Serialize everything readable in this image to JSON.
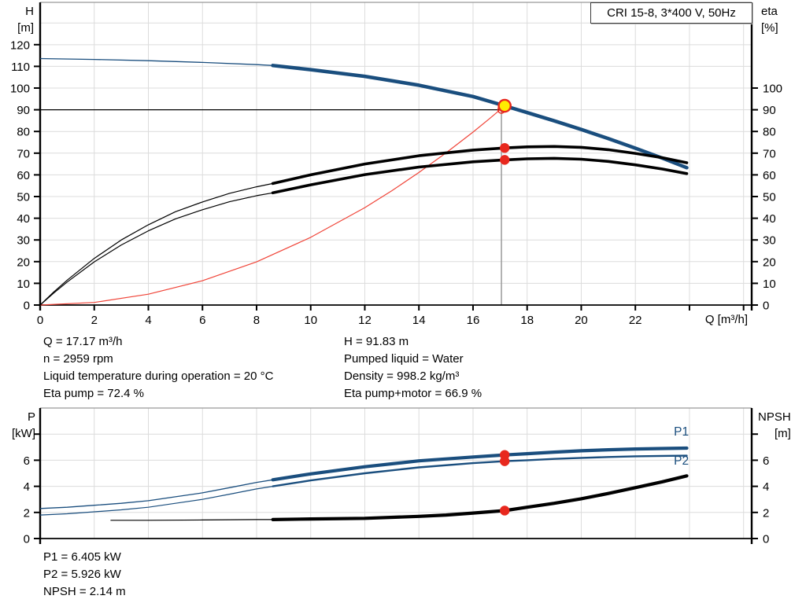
{
  "title_box": "CRI 15-8, 3*400 V, 50Hz",
  "colors": {
    "curve_blue": "#1a4e7e",
    "curve_black": "#000000",
    "red": "#e8281e",
    "red_line": "#f04438",
    "duty_yellow": "#ffec00",
    "grid": "#dcdcdc",
    "top_border": "#999999",
    "vline_gray": "#9a9a9a",
    "axis": "#000000"
  },
  "axis_labels": {
    "top_left_1": "H",
    "top_left_2": "[m]",
    "top_right_1": "eta",
    "top_right_2": "[%]",
    "x": "Q [m³/h]",
    "bottom_left_1": "P",
    "bottom_left_2": "[kW]",
    "bottom_right_1": "NPSH",
    "bottom_right_2": "[m]"
  },
  "info_top": {
    "left": [
      "Q = 17.17 m³/h",
      "n = 2959 rpm",
      "Liquid temperature during operation = 20 °C",
      "Eta pump = 72.4 %"
    ],
    "right": [
      "H = 91.83 m",
      "Pumped liquid = Water",
      "Density = 998.2 kg/m³",
      "Eta pump+motor = 66.9 %"
    ]
  },
  "info_bottom": [
    "P1 = 6.405 kW",
    "P2 = 5.926 kW",
    "NPSH = 2.14 m"
  ],
  "duty_point": {
    "q": 17.17,
    "h": 91.83,
    "eta_pump": 72.4,
    "eta_pump_motor": 66.9,
    "p1": 6.405,
    "p2": 5.926,
    "npsh": 2.14,
    "requested_q": 17.05,
    "requested_h": 90
  },
  "chart_data": [
    {
      "id": "head_chart",
      "type": "line",
      "title": "CRI 15-8, 3*400 V, 50Hz",
      "xlabel": "Q [m³/h]",
      "ylabel_left": "H [m]",
      "ylabel_right": "eta [%]",
      "xlim": [
        0,
        26.3
      ],
      "ylim": [
        0,
        139.5
      ],
      "grid_x": [
        2,
        4,
        6,
        8,
        10,
        12,
        14,
        16,
        18,
        20,
        22,
        24,
        26
      ],
      "grid_y": [
        10,
        20,
        30,
        40,
        50,
        60,
        70,
        80,
        90,
        100,
        110,
        120,
        130
      ],
      "xticks": {
        "values": [
          0,
          2,
          4,
          6,
          8,
          10,
          12,
          14,
          16,
          18,
          20,
          22,
          24,
          26
        ],
        "labels": [
          "0",
          "2",
          "4",
          "6",
          "8",
          "10",
          "12",
          "14",
          "16",
          "18",
          "20",
          "22",
          "",
          ""
        ]
      },
      "yticks_left": {
        "values": [
          0,
          10,
          20,
          30,
          40,
          50,
          60,
          70,
          80,
          90,
          100,
          110,
          120
        ],
        "labels": [
          "0",
          "10",
          "20",
          "30",
          "40",
          "50",
          "60",
          "70",
          "80",
          "90",
          "100",
          "110",
          "120"
        ]
      },
      "yticks_right": {
        "values": [
          0,
          10,
          20,
          30,
          40,
          50,
          60,
          70,
          80,
          90,
          100
        ],
        "labels": [
          "0",
          "10",
          "20",
          "30",
          "40",
          "50",
          "60",
          "70",
          "80",
          "90",
          "100"
        ]
      },
      "draw_x_tick_labels": true,
      "lines": [
        {
          "name": "duty-hline",
          "type": "h",
          "v": 90,
          "q1": 0,
          "q2": 17.05,
          "color": "#000000",
          "width": 1.3
        },
        {
          "name": "duty-vline",
          "type": "v",
          "q": 17.05,
          "v1": 91,
          "v2": 0,
          "color": "#9a9a9a",
          "width": 1.5
        }
      ],
      "series": [
        {
          "name": "system-curve",
          "color": "#f04438",
          "thin": 1.2,
          "thick": 1.2,
          "split_q": null,
          "points": [
            [
              0,
              0
            ],
            [
              2,
              1.2
            ],
            [
              4,
              5
            ],
            [
              6,
              11.2
            ],
            [
              8,
              19.9
            ],
            [
              10,
              31.2
            ],
            [
              12,
              44.9
            ],
            [
              13,
              52.7
            ],
            [
              14,
              61.1
            ],
            [
              15,
              70.1
            ],
            [
              16,
              79.7
            ],
            [
              16.6,
              85.8
            ],
            [
              17.17,
              91.8
            ]
          ]
        },
        {
          "name": "head-curve",
          "color": "#1a4e7e",
          "thin": 1.3,
          "thick": 4.5,
          "split_q": 8.6,
          "points": [
            [
              0,
              113.6
            ],
            [
              2,
              113.2
            ],
            [
              4,
              112.6
            ],
            [
              6,
              111.8
            ],
            [
              8,
              110.8
            ],
            [
              8.6,
              110.4
            ],
            [
              10,
              108.5
            ],
            [
              12,
              105.4
            ],
            [
              14,
              101.3
            ],
            [
              16,
              96.1
            ],
            [
              17.17,
              91.83
            ],
            [
              18,
              88.7
            ],
            [
              19,
              84.9
            ],
            [
              20,
              80.9
            ],
            [
              21,
              76.7
            ],
            [
              22,
              72.3
            ],
            [
              23,
              67.7
            ],
            [
              23.9,
              63.3
            ]
          ]
        },
        {
          "name": "eta-pump-curve",
          "color": "#000000",
          "thin": 1.2,
          "thick": 3.6,
          "split_q": 8.6,
          "points": [
            [
              0,
              0
            ],
            [
              0.5,
              6
            ],
            [
              1,
              11.5
            ],
            [
              2,
              21.5
            ],
            [
              3,
              30
            ],
            [
              4,
              37
            ],
            [
              5,
              43
            ],
            [
              6,
              47.5
            ],
            [
              7,
              51.5
            ],
            [
              8,
              54.5
            ],
            [
              8.6,
              56
            ],
            [
              10,
              60
            ],
            [
              12,
              65
            ],
            [
              14,
              68.8
            ],
            [
              16,
              71.4
            ],
            [
              17.17,
              72.4
            ],
            [
              18,
              72.9
            ],
            [
              19,
              73.1
            ],
            [
              20,
              72.7
            ],
            [
              21,
              71.6
            ],
            [
              22,
              69.9
            ],
            [
              23,
              67.9
            ],
            [
              23.9,
              65.6
            ]
          ]
        },
        {
          "name": "eta-pump-motor-curve",
          "color": "#000000",
          "thin": 1.2,
          "thick": 3.6,
          "split_q": 8.6,
          "points": [
            [
              0,
              0
            ],
            [
              0.5,
              5.5
            ],
            [
              1,
              10.6
            ],
            [
              2,
              19.9
            ],
            [
              3,
              27.7
            ],
            [
              4,
              34.2
            ],
            [
              5,
              39.7
            ],
            [
              6,
              43.9
            ],
            [
              7,
              47.6
            ],
            [
              8,
              50.4
            ],
            [
              8.6,
              51.7
            ],
            [
              10,
              55.4
            ],
            [
              12,
              60.1
            ],
            [
              14,
              63.6
            ],
            [
              16,
              66
            ],
            [
              17.17,
              66.9
            ],
            [
              18,
              67.4
            ],
            [
              19,
              67.6
            ],
            [
              20,
              67.2
            ],
            [
              21,
              66.2
            ],
            [
              22,
              64.6
            ],
            [
              23,
              62.7
            ],
            [
              23.9,
              60.6
            ]
          ]
        }
      ],
      "markers": [
        {
          "name": "requested-duty-point",
          "type": "open",
          "q": 17.05,
          "v": 90
        },
        {
          "name": "duty-point",
          "type": "duty",
          "q": 17.17,
          "v": 91.83
        },
        {
          "name": "eta-pump-dot",
          "type": "dot",
          "q": 17.17,
          "v": 72.4
        },
        {
          "name": "eta-pump-motor-dot",
          "type": "dot",
          "q": 17.17,
          "v": 66.9
        }
      ],
      "text_labels": []
    },
    {
      "id": "power_chart",
      "type": "line",
      "xlabel": "",
      "ylabel_left": "P [kW]",
      "ylabel_right": "NPSH [m]",
      "xlim": [
        0,
        26.3
      ],
      "ylim": [
        0,
        10
      ],
      "grid_x": [
        2,
        4,
        6,
        8,
        10,
        12,
        14,
        16,
        18,
        20,
        22,
        24,
        26
      ],
      "grid_y": [
        2,
        4,
        6,
        8
      ],
      "xticks": {
        "values": [
          0,
          2,
          4,
          6,
          8,
          10,
          12,
          14,
          16,
          18,
          20,
          22,
          24,
          26
        ],
        "labels": [
          "",
          "",
          "",
          "",
          "",
          "",
          "",
          "",
          "",
          "",
          "",
          "",
          "",
          ""
        ]
      },
      "yticks_left": {
        "values": [
          0,
          2,
          4,
          6,
          8
        ],
        "labels": [
          "0",
          "2",
          "4",
          "6",
          ""
        ]
      },
      "yticks_right": {
        "values": [
          0,
          2,
          4,
          6,
          8
        ],
        "labels": [
          "0",
          "2",
          "4",
          "6",
          ""
        ]
      },
      "draw_x_tick_labels": false,
      "lines": [],
      "series": [
        {
          "name": "p1-curve",
          "color": "#1a4e7e",
          "thin": 1.3,
          "thick": 4.2,
          "split_q": 8.6,
          "points": [
            [
              0,
              2.3
            ],
            [
              1,
              2.4
            ],
            [
              2,
              2.55
            ],
            [
              3,
              2.7
            ],
            [
              4,
              2.9
            ],
            [
              5,
              3.2
            ],
            [
              6,
              3.5
            ],
            [
              7,
              3.9
            ],
            [
              8,
              4.3
            ],
            [
              8.6,
              4.5
            ],
            [
              10,
              4.95
            ],
            [
              12,
              5.5
            ],
            [
              14,
              5.95
            ],
            [
              16,
              6.25
            ],
            [
              17.17,
              6.405
            ],
            [
              18,
              6.5
            ],
            [
              19,
              6.62
            ],
            [
              20,
              6.72
            ],
            [
              21,
              6.8
            ],
            [
              22,
              6.86
            ],
            [
              23,
              6.9
            ],
            [
              23.9,
              6.93
            ]
          ]
        },
        {
          "name": "p2-curve",
          "color": "#1a4e7e",
          "thin": 1.2,
          "thick": 2.4,
          "split_q": 8.6,
          "points": [
            [
              0,
              1.8
            ],
            [
              1,
              1.9
            ],
            [
              2,
              2.05
            ],
            [
              3,
              2.2
            ],
            [
              4,
              2.4
            ],
            [
              5,
              2.7
            ],
            [
              6,
              3.0
            ],
            [
              7,
              3.4
            ],
            [
              8,
              3.8
            ],
            [
              8.6,
              4.0
            ],
            [
              10,
              4.45
            ],
            [
              12,
              5.0
            ],
            [
              14,
              5.45
            ],
            [
              16,
              5.78
            ],
            [
              17.17,
              5.926
            ],
            [
              18,
              6.0
            ],
            [
              19,
              6.1
            ],
            [
              20,
              6.18
            ],
            [
              21,
              6.25
            ],
            [
              22,
              6.3
            ],
            [
              23,
              6.33
            ],
            [
              23.9,
              6.35
            ]
          ]
        },
        {
          "name": "npsh-curve",
          "color": "#000000",
          "thin": 1.2,
          "thick": 4.2,
          "split_q": 8.6,
          "points": [
            [
              2.6,
              1.4
            ],
            [
              4,
              1.4
            ],
            [
              6,
              1.42
            ],
            [
              8,
              1.45
            ],
            [
              8.6,
              1.45
            ],
            [
              10,
              1.5
            ],
            [
              12,
              1.55
            ],
            [
              14,
              1.7
            ],
            [
              15,
              1.8
            ],
            [
              16,
              1.95
            ],
            [
              17.17,
              2.14
            ],
            [
              18,
              2.4
            ],
            [
              19,
              2.7
            ],
            [
              20,
              3.05
            ],
            [
              21,
              3.45
            ],
            [
              22,
              3.9
            ],
            [
              23,
              4.35
            ],
            [
              23.9,
              4.8
            ]
          ]
        }
      ],
      "markers": [
        {
          "name": "p1-dot",
          "type": "dot",
          "q": 17.17,
          "v": 6.405
        },
        {
          "name": "p2-dot",
          "type": "dot",
          "q": 17.17,
          "v": 5.926
        },
        {
          "name": "npsh-dot",
          "type": "dot",
          "q": 17.17,
          "v": 2.14
        }
      ],
      "text_labels": [
        {
          "name": "p1-curve-label",
          "text": "P1",
          "q": 23.7,
          "v": 7.9,
          "color": "#1a4e7e"
        },
        {
          "name": "p2-curve-label",
          "text": "P2",
          "q": 23.7,
          "v": 5.65,
          "color": "#1a4e7e"
        }
      ]
    }
  ]
}
